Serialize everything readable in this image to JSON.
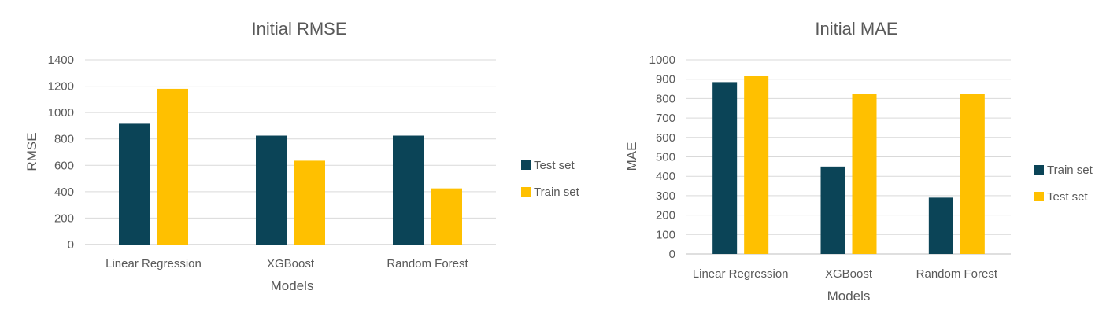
{
  "chart_data": [
    {
      "type": "bar",
      "title": "Initial RMSE",
      "xlabel": "Models",
      "ylabel": "RMSE",
      "categories": [
        "Linear Regression",
        "XGBoost",
        "Random Forest"
      ],
      "ylim": [
        0,
        1400
      ],
      "yticks": [
        0,
        200,
        400,
        600,
        800,
        1000,
        1200,
        1400
      ],
      "grid": true,
      "legend_position": "right",
      "series": [
        {
          "name": "Test set",
          "color": "#0b4457",
          "values": [
            915,
            825,
            825
          ]
        },
        {
          "name": "Train set",
          "color": "#ffc000",
          "values": [
            1180,
            635,
            425
          ]
        }
      ]
    },
    {
      "type": "bar",
      "title": "Initial MAE",
      "xlabel": "Models",
      "ylabel": "MAE",
      "categories": [
        "Linear Regression",
        "XGBoost",
        "Random Forest"
      ],
      "ylim": [
        0,
        1000
      ],
      "yticks": [
        0,
        100,
        200,
        300,
        400,
        500,
        600,
        700,
        800,
        900,
        1000
      ],
      "grid": true,
      "legend_position": "right",
      "series": [
        {
          "name": "Train set",
          "color": "#0b4457",
          "values": [
            885,
            450,
            290
          ]
        },
        {
          "name": "Test set",
          "color": "#ffc000",
          "values": [
            915,
            825,
            825
          ]
        }
      ]
    }
  ]
}
